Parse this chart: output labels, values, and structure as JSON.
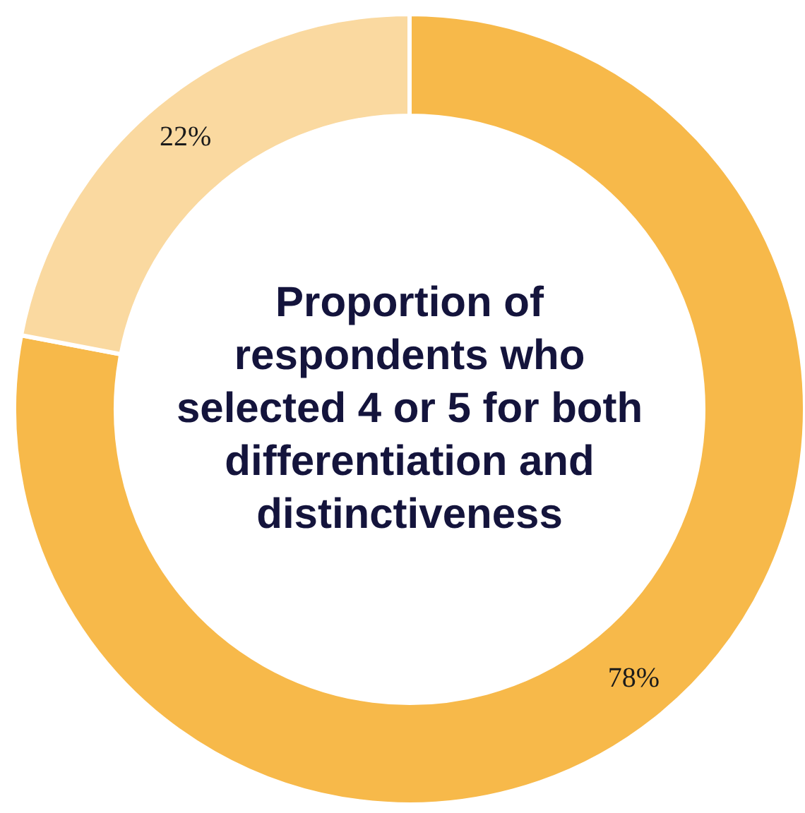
{
  "chart_data": {
    "type": "donut",
    "title": "Proportion of respondents who selected 4 or 5 for both differentiation and distinctiveness",
    "categories": [
      null,
      null
    ],
    "values": [
      78,
      22
    ],
    "colors": [
      "#f7b94a",
      "#fad9a0"
    ],
    "value_labels": [
      "78%",
      "22%"
    ]
  }
}
